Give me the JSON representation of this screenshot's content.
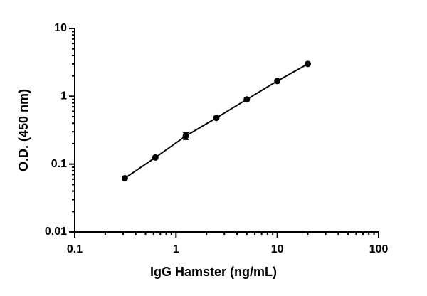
{
  "chart_data": {
    "type": "line",
    "x_label": "IgG Hamster (ng/mL)",
    "y_label": "O.D. (450 nm)",
    "x": [
      0.3125,
      0.625,
      1.25,
      2.5,
      5,
      10,
      20
    ],
    "series": [
      {
        "color": "#000000",
        "values": [
          0.062,
          0.125,
          0.26,
          0.48,
          0.9,
          1.68,
          3.0
        ],
        "errors": [
          0.003,
          0.005,
          0.03,
          0.015,
          0.03,
          0.05,
          0.08
        ]
      }
    ],
    "xscale": "log",
    "yscale": "log",
    "xlim": [
      0.1,
      100
    ],
    "ylim": [
      0.01,
      10
    ],
    "xticks": [
      0.1,
      1,
      10,
      100
    ],
    "yticks": [
      0.01,
      0.1,
      1,
      10
    ],
    "xminorticks": [
      0.2,
      0.3,
      0.4,
      0.5,
      0.6,
      0.7,
      0.8,
      0.9,
      2,
      3,
      4,
      5,
      6,
      7,
      8,
      9,
      20,
      30,
      40,
      50,
      60,
      70,
      80,
      90
    ],
    "yminorticks": [
      0.02,
      0.03,
      0.04,
      0.05,
      0.06,
      0.07,
      0.08,
      0.09,
      0.2,
      0.3,
      0.4,
      0.5,
      0.6,
      0.7,
      0.8,
      0.9,
      2,
      3,
      4,
      5,
      6,
      7,
      8,
      9
    ],
    "grid": false
  }
}
